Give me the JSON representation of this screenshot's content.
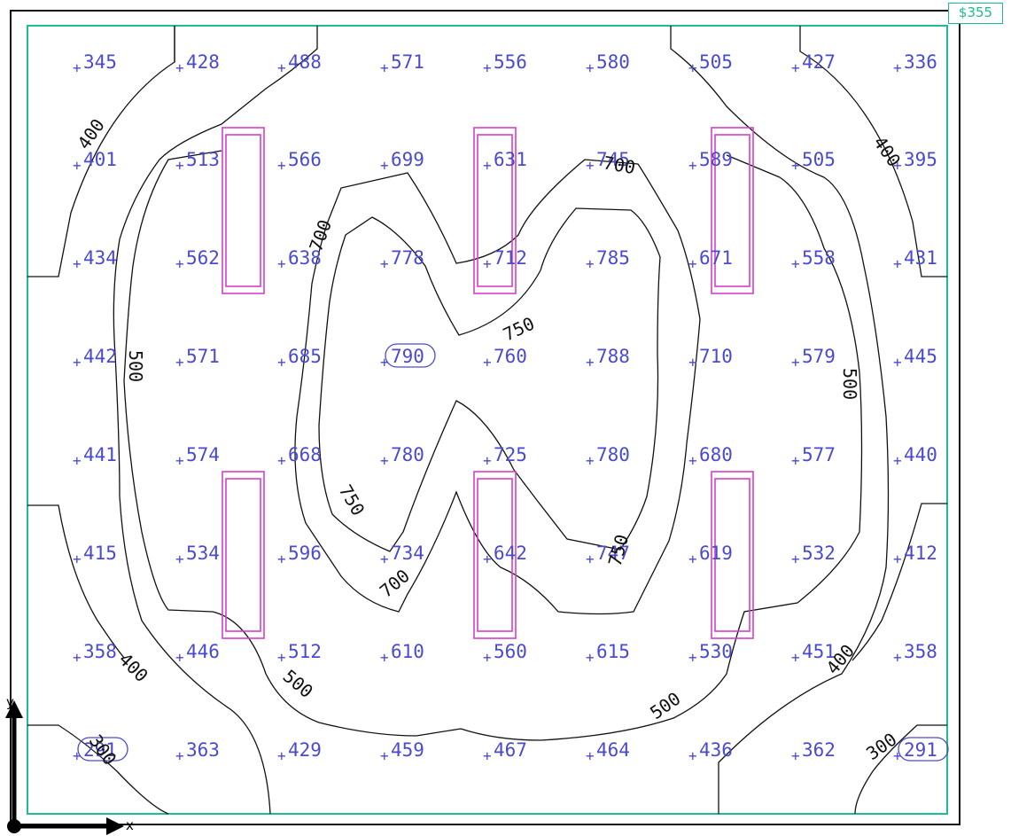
{
  "frame_tag": "$355",
  "axis": {
    "x_label": "x",
    "y_label": "y"
  },
  "colors": {
    "values": "#4a4ad0",
    "contours": "#111111",
    "room_outline": "#1dbb96",
    "luminaires": "#d63fc8",
    "frame": "#111111"
  },
  "grid": {
    "rows": [
      [
        "345",
        "428",
        "488",
        "571",
        "556",
        "580",
        "505",
        "427",
        "336"
      ],
      [
        "401",
        "513",
        "566",
        "699",
        "631",
        "745",
        "589",
        "505",
        "395"
      ],
      [
        "434",
        "562",
        "638",
        "778",
        "712",
        "785",
        "671",
        "558",
        "431"
      ],
      [
        "442",
        "571",
        "685",
        "790",
        "760",
        "788",
        "710",
        "579",
        "445"
      ],
      [
        "441",
        "574",
        "668",
        "780",
        "725",
        "780",
        "680",
        "577",
        "440"
      ],
      [
        "415",
        "534",
        "596",
        "734",
        "642",
        "747",
        "619",
        "532",
        "412"
      ],
      [
        "358",
        "446",
        "512",
        "610",
        "560",
        "615",
        "530",
        "451",
        "358"
      ],
      [
        "291",
        "363",
        "429",
        "459",
        "467",
        "464",
        "436",
        "362",
        "291"
      ]
    ],
    "highlighted": [
      [
        3,
        3
      ],
      [
        7,
        0
      ],
      [
        7,
        8
      ]
    ]
  },
  "contour_labels": [
    {
      "id": "c400-tl",
      "text": "400"
    },
    {
      "id": "c500-l",
      "text": "500"
    },
    {
      "id": "c700-t",
      "text": "700"
    },
    {
      "id": "c700-l",
      "text": "700"
    },
    {
      "id": "c750-m",
      "text": "750"
    },
    {
      "id": "c750-bl",
      "text": "750"
    },
    {
      "id": "c700-bl",
      "text": "700"
    },
    {
      "id": "c750-br",
      "text": "750"
    },
    {
      "id": "c400-tr",
      "text": "400"
    },
    {
      "id": "c500-r",
      "text": "500"
    },
    {
      "id": "c400-bl",
      "text": "400"
    },
    {
      "id": "c500-bl",
      "text": "500"
    },
    {
      "id": "c500-br",
      "text": "500"
    },
    {
      "id": "c400-br",
      "text": "400"
    },
    {
      "id": "c300-bl",
      "text": "300"
    },
    {
      "id": "c300-br",
      "text": "300"
    }
  ]
}
